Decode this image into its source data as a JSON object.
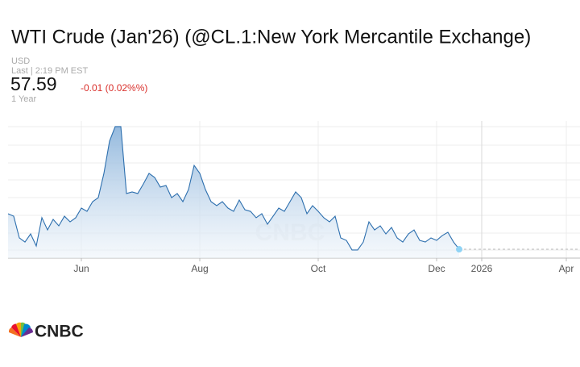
{
  "header": {
    "title": "WTI Crude (Jan'26) (@CL.1:New York Mercantile Exchange)",
    "currency": "USD",
    "last_time": "Last | 2:19 PM EST",
    "last_price": "57.59",
    "change": "-0.01 (0.02%%)",
    "range": "1 Year"
  },
  "chart_data": {
    "type": "area",
    "categories": [
      null,
      null,
      null,
      null,
      null,
      null,
      null,
      null,
      null,
      null,
      null,
      null,
      null,
      "Jun",
      null,
      null,
      null,
      null,
      null,
      null,
      null,
      null,
      null,
      null,
      null,
      null,
      null,
      null,
      null,
      null,
      null,
      null,
      null,
      null,
      "Aug",
      null,
      null,
      null,
      null,
      null,
      null,
      null,
      null,
      null,
      null,
      null,
      null,
      null,
      null,
      null,
      null,
      null,
      null,
      null,
      null,
      "Oct",
      null,
      null,
      null,
      null,
      null,
      null,
      null,
      null,
      null,
      null,
      null,
      null,
      null,
      null,
      null,
      null,
      null,
      null,
      null,
      null,
      "Dec",
      null,
      null,
      null,
      null,
      null,
      null,
      null,
      "2026",
      null,
      null,
      null,
      null,
      null,
      null,
      null,
      null,
      null,
      null,
      null,
      null,
      null,
      null,
      "Apr",
      null
    ],
    "series": [
      {
        "color": "#2d6fae",
        "values": [
          61.32,
          61.06,
          58.78,
          58.35,
          59.2,
          57.93,
          60.9,
          59.62,
          60.73,
          60.05,
          61.06,
          60.47,
          60.9,
          61.91,
          61.57,
          62.59,
          63.01,
          65.56,
          68.95,
          70.47,
          70.47,
          63.44,
          63.61,
          63.44,
          64.45,
          65.56,
          65.13,
          64.12,
          64.29,
          63.01,
          63.44,
          62.59,
          63.86,
          66.4,
          65.56,
          63.86,
          62.59,
          62.17,
          62.59,
          61.91,
          61.57,
          62.76,
          61.74,
          61.57,
          60.9,
          61.32,
          60.22,
          61.06,
          61.91,
          61.57,
          62.59,
          63.61,
          63.01,
          61.32,
          62.17,
          61.57,
          60.9,
          60.47,
          61.06,
          58.78,
          58.52,
          57.51,
          57.51,
          58.35,
          60.47,
          59.62,
          60.05,
          59.2,
          59.88,
          58.78,
          58.35,
          59.2,
          59.62,
          58.52,
          58.35,
          58.78,
          58.52,
          59.03,
          59.37,
          58.35,
          57.59,
          null,
          null,
          null,
          null,
          null,
          null,
          null,
          null,
          null,
          null,
          null,
          null,
          null,
          null,
          null,
          null,
          null,
          null,
          null,
          null
        ]
      }
    ],
    "ylim": [
      56.66,
      71.06
    ],
    "grid": true
  },
  "footer": {
    "logo": "CNBC"
  }
}
